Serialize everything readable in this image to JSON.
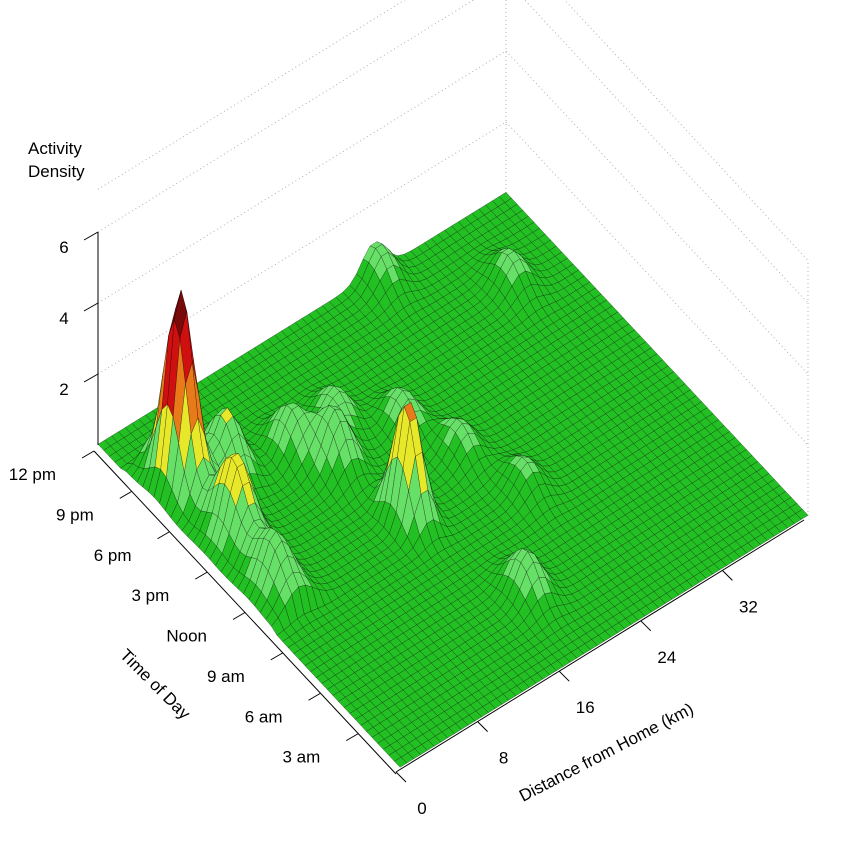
{
  "chart_data": {
    "type": "surface3d",
    "title": "",
    "zlabel_lines": [
      "Activity",
      "Density"
    ],
    "xlabel": "Distance from Home (km)",
    "ylabel": "Time of Day",
    "x_ticks": [
      {
        "value": 0,
        "label": "0"
      },
      {
        "value": 8,
        "label": "8"
      },
      {
        "value": 16,
        "label": "16"
      },
      {
        "value": 24,
        "label": "24"
      },
      {
        "value": 32,
        "label": "32"
      }
    ],
    "y_ticks": [
      {
        "value": 3,
        "label": "3 am"
      },
      {
        "value": 6,
        "label": "6 am"
      },
      {
        "value": 9,
        "label": "9 am"
      },
      {
        "value": 12,
        "label": "Noon"
      },
      {
        "value": 15,
        "label": "3 pm"
      },
      {
        "value": 18,
        "label": "6 pm"
      },
      {
        "value": 21,
        "label": "9 pm"
      },
      {
        "value": 24,
        "label": "12 pm"
      }
    ],
    "z_ticks": [
      {
        "value": 2,
        "label": "2"
      },
      {
        "value": 4,
        "label": "4"
      },
      {
        "value": 6,
        "label": "6"
      }
    ],
    "xlim": [
      0,
      40
    ],
    "ylim": [
      0,
      24
    ],
    "zlim": [
      0,
      6
    ],
    "grid": true,
    "colors": {
      "surface_low": "#22c022",
      "surface_mid": "#66e066",
      "surface_yellow": "#e8e82a",
      "surface_orange": "#e87a1a",
      "surface_red": "#d01010",
      "surface_darkred": "#7a0a0a",
      "mesh": "#000000",
      "grid": "#b0b0b0"
    },
    "peaks": [
      {
        "x": 2.5,
        "y": 19.5,
        "z": 5.2
      },
      {
        "x": 3.0,
        "y": 15.5,
        "z": 2.0
      },
      {
        "x": 2.5,
        "y": 12.0,
        "z": 1.2
      },
      {
        "x": 6.5,
        "y": 19.0,
        "z": 1.7
      },
      {
        "x": 11.5,
        "y": 18.0,
        "z": 1.3
      },
      {
        "x": 13.5,
        "y": 16.0,
        "z": 1.6
      },
      {
        "x": 15.0,
        "y": 11.5,
        "z": 3.4
      },
      {
        "x": 16.0,
        "y": 18.0,
        "z": 1.0
      },
      {
        "x": 20.0,
        "y": 16.0,
        "z": 1.0
      },
      {
        "x": 22.0,
        "y": 13.0,
        "z": 0.9
      },
      {
        "x": 24.0,
        "y": 9.5,
        "z": 0.8
      },
      {
        "x": 18.0,
        "y": 4.5,
        "z": 1.2
      },
      {
        "x": 27.0,
        "y": 23.5,
        "z": 1.0
      },
      {
        "x": 35.0,
        "y": 19.5,
        "z": 0.9
      }
    ]
  }
}
